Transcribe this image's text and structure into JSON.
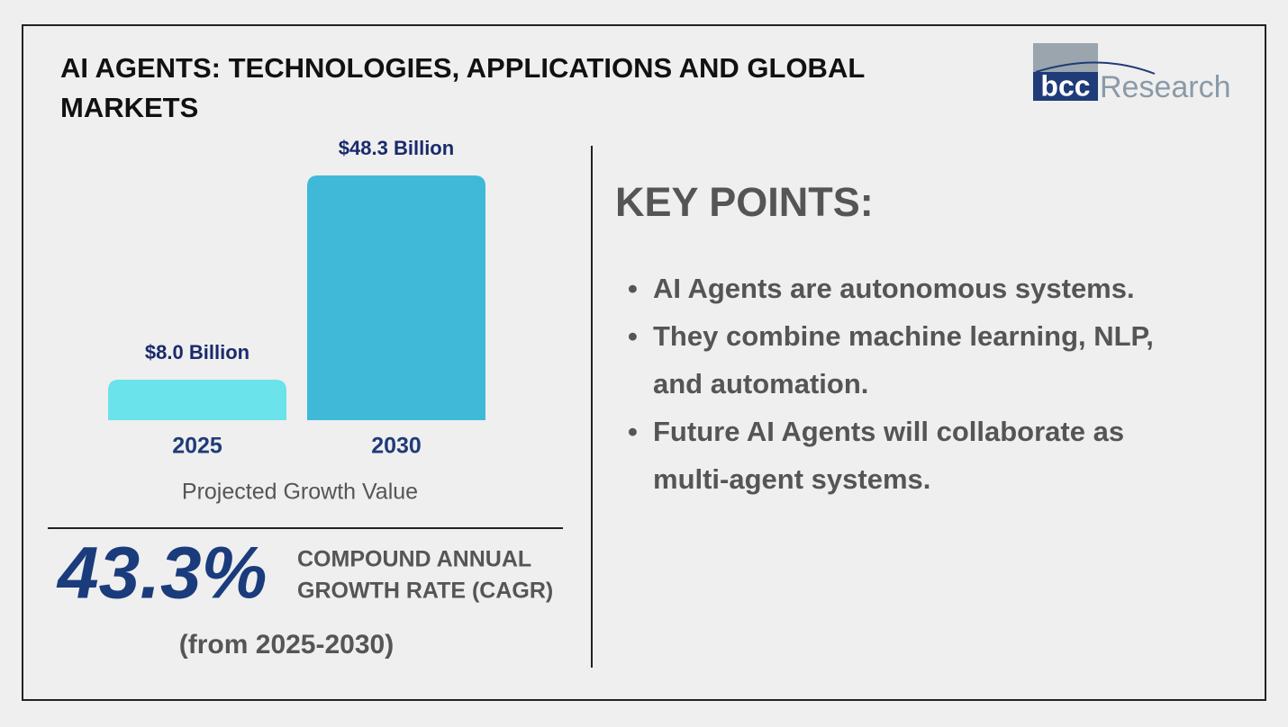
{
  "chart_data": {
    "type": "bar",
    "title_lines": [
      "AI AGENTS: TECHNOLOGIES, APPLICATIONS AND GLOBAL",
      "MARKETS"
    ],
    "categories": [
      "2025",
      "2030"
    ],
    "values": [
      8.0,
      48.3
    ],
    "value_labels": [
      "$8.0 Billion",
      "$48.3 Billion"
    ],
    "colors": [
      "#6ae3ea",
      "#40b9d9"
    ],
    "xlabel": "Projected Growth Value"
  },
  "cagr": {
    "value": "43.3%",
    "label_lines": [
      "COMPOUND ANNUAL",
      "GROWTH RATE (CAGR)"
    ],
    "period": "(from 2025-2030)"
  },
  "key_points": {
    "heading": "KEY POINTS:",
    "items": [
      "AI Agents are autonomous systems.",
      "They combine machine learning, NLP, and automation.",
      "Future AI Agents will collaborate as multi-agent systems."
    ]
  },
  "logo": {
    "brand": "bcc",
    "name": "Research"
  }
}
